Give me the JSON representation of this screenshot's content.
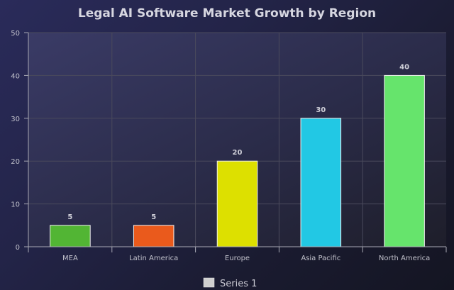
{
  "chart_data": {
    "type": "bar",
    "title": "Legal AI Software Market Growth by Region",
    "categories": [
      "MEA",
      "Latin America",
      "Europe",
      "Asia Pacific",
      "North America"
    ],
    "series": [
      {
        "name": "Series 1",
        "values": [
          5,
          5,
          20,
          30,
          40
        ],
        "colors": [
          "#52b534",
          "#ea5a1c",
          "#dde000",
          "#22c8e4",
          "#66e46c"
        ]
      }
    ],
    "ylim": [
      0,
      50
    ],
    "yticks": [
      0,
      10,
      20,
      30,
      40,
      50
    ],
    "grid": true,
    "legend_position": "bottom-center",
    "data_labels": true
  },
  "colors": {
    "title": "#d6d6e0",
    "tick_label": "#c2c2cc",
    "data_label": "#cfcfd8",
    "grid": "#4a4a5c",
    "axis": "#a8a8b4",
    "legend_swatch": "#cfcfcf"
  }
}
